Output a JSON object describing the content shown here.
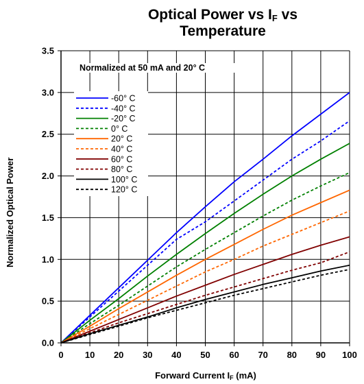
{
  "chart_data": {
    "type": "line",
    "title_line1_prefix": "Optical Power vs I",
    "title_line1_sub": "F",
    "title_line1_suffix": " vs",
    "title_line2": "Temperature",
    "xlabel_prefix": "Forward Current I",
    "xlabel_sub": "F",
    "xlabel_suffix": " (mA)",
    "ylabel": "Normalized Optical Power",
    "annotation": "Normalized at 50 mA and 20° C",
    "xlim": [
      0,
      100
    ],
    "ylim": [
      0,
      3.5
    ],
    "xticks": [
      "0",
      "10",
      "20",
      "30",
      "40",
      "50",
      "60",
      "70",
      "80",
      "90",
      "100"
    ],
    "yticks": [
      "0.0",
      "0.5",
      "1.0",
      "1.5",
      "2.0",
      "2.5",
      "3.0",
      "3.5"
    ],
    "grid": true,
    "legend_position": "upper-left",
    "x": [
      0,
      10,
      20,
      30,
      40,
      50,
      60,
      70,
      80,
      90,
      100
    ],
    "series": [
      {
        "name": "-60° C",
        "color": "#0000ff",
        "dash": false,
        "values": [
          0,
          0.33,
          0.66,
          0.99,
          1.32,
          1.63,
          1.93,
          2.2,
          2.48,
          2.74,
          3.0
        ]
      },
      {
        "name": "-40° C",
        "color": "#0000ff",
        "dash": true,
        "values": [
          0,
          0.31,
          0.62,
          0.93,
          1.24,
          1.45,
          1.7,
          1.95,
          2.2,
          2.42,
          2.66
        ]
      },
      {
        "name": "-20° C",
        "color": "#008000",
        "dash": false,
        "values": [
          0,
          0.27,
          0.53,
          0.8,
          1.06,
          1.31,
          1.55,
          1.78,
          2.0,
          2.2,
          2.39
        ]
      },
      {
        "name": "0° C",
        "color": "#008000",
        "dash": true,
        "values": [
          0,
          0.23,
          0.45,
          0.68,
          0.91,
          1.12,
          1.32,
          1.52,
          1.71,
          1.88,
          2.04
        ]
      },
      {
        "name": "20° C",
        "color": "#ff6600",
        "dash": false,
        "values": [
          0,
          0.2,
          0.41,
          0.61,
          0.81,
          1.0,
          1.18,
          1.36,
          1.53,
          1.68,
          1.83
        ]
      },
      {
        "name": "40° C",
        "color": "#ff6600",
        "dash": true,
        "values": [
          0,
          0.17,
          0.34,
          0.51,
          0.68,
          0.85,
          1.0,
          1.16,
          1.3,
          1.44,
          1.58
        ]
      },
      {
        "name": "60° C",
        "color": "#800000",
        "dash": false,
        "values": [
          0,
          0.14,
          0.28,
          0.42,
          0.56,
          0.69,
          0.82,
          0.94,
          1.06,
          1.17,
          1.27
        ]
      },
      {
        "name": "80° C",
        "color": "#800000",
        "dash": true,
        "values": [
          0,
          0.12,
          0.24,
          0.35,
          0.46,
          0.57,
          0.67,
          0.77,
          0.87,
          0.96,
          1.09
        ]
      },
      {
        "name": "100° C",
        "color": "#000000",
        "dash": false,
        "values": [
          0,
          0.11,
          0.21,
          0.31,
          0.42,
          0.52,
          0.61,
          0.7,
          0.78,
          0.86,
          0.93
        ]
      },
      {
        "name": "120° C",
        "color": "#000000",
        "dash": true,
        "values": [
          0,
          0.1,
          0.2,
          0.3,
          0.39,
          0.48,
          0.57,
          0.65,
          0.73,
          0.81,
          0.88
        ]
      }
    ]
  }
}
